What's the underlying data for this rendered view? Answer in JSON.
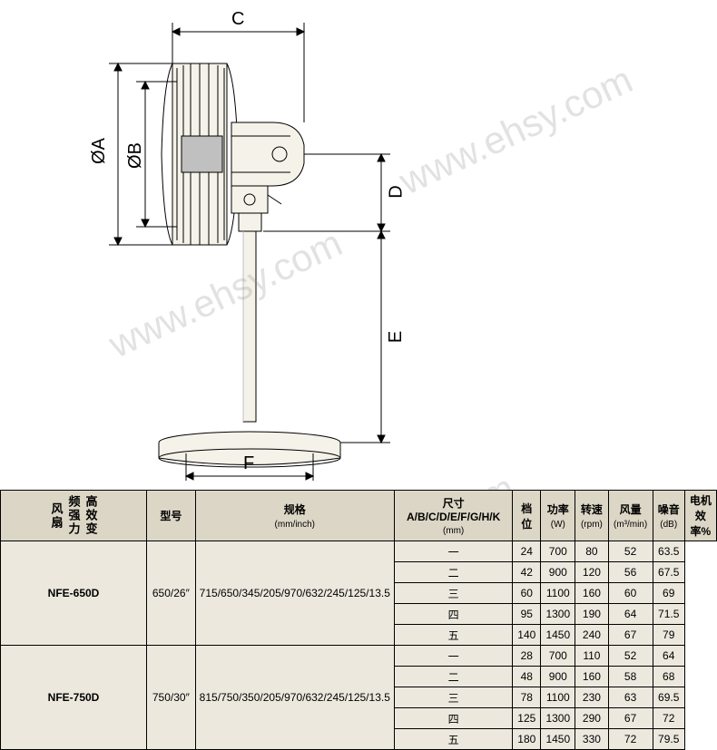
{
  "diagram": {
    "labels": {
      "A": "ØA",
      "B": "ØB",
      "C": "C",
      "D": "D",
      "E": "E",
      "F": "F"
    },
    "watermark": "www.ehsy.com",
    "colors": {
      "line": "#000000",
      "fill": "#f5f2e9",
      "shade": "#c0c0c0",
      "background": "#ffffff"
    },
    "line_width": 1
  },
  "table": {
    "side_title": "高效变频强力风扇",
    "headers": {
      "model": "型号",
      "spec": "规格",
      "spec_sub": "(mm/inch)",
      "dims": "尺寸 A/B/C/D/E/F/G/H/K",
      "dims_sub": "(mm)",
      "gear": "档位",
      "power": "功率",
      "power_sub": "(W)",
      "speed": "转速",
      "speed_sub": "(rpm)",
      "airflow": "风量",
      "airflow_sub": "(m³/min)",
      "noise": "噪音",
      "noise_sub": "(dB)",
      "eff": "电机效率%"
    },
    "colors": {
      "body_bg": "#ece8de",
      "header_bg": "#dcd6c6",
      "border": "#000000",
      "text": "#000000"
    },
    "font_size": 12,
    "products": [
      {
        "model": "NFE-650D",
        "spec": "650/26″",
        "dims": "715/650/345/205/970/632/245/125/13.5",
        "rows": [
          {
            "gear": "一",
            "power": 24,
            "speed": 700,
            "airflow": 80,
            "noise": 52,
            "eff": 63.5
          },
          {
            "gear": "二",
            "power": 42,
            "speed": 900,
            "airflow": 120,
            "noise": 56,
            "eff": 67.5
          },
          {
            "gear": "三",
            "power": 60,
            "speed": 1100,
            "airflow": 160,
            "noise": 60,
            "eff": 69
          },
          {
            "gear": "四",
            "power": 95,
            "speed": 1300,
            "airflow": 190,
            "noise": 64,
            "eff": 71.5
          },
          {
            "gear": "五",
            "power": 140,
            "speed": 1450,
            "airflow": 240,
            "noise": 67,
            "eff": 79
          }
        ]
      },
      {
        "model": "NFE-750D",
        "spec": "750/30″",
        "dims": "815/750/350/205/970/632/245/125/13.5",
        "rows": [
          {
            "gear": "一",
            "power": 28,
            "speed": 700,
            "airflow": 110,
            "noise": 52,
            "eff": 64
          },
          {
            "gear": "二",
            "power": 48,
            "speed": 900,
            "airflow": 160,
            "noise": 58,
            "eff": 68
          },
          {
            "gear": "三",
            "power": 78,
            "speed": 1100,
            "airflow": 230,
            "noise": 63,
            "eff": 69.5
          },
          {
            "gear": "四",
            "power": 125,
            "speed": 1300,
            "airflow": 290,
            "noise": 67,
            "eff": 72
          },
          {
            "gear": "五",
            "power": 180,
            "speed": 1450,
            "airflow": 330,
            "noise": 72,
            "eff": 79.5
          }
        ]
      }
    ]
  }
}
